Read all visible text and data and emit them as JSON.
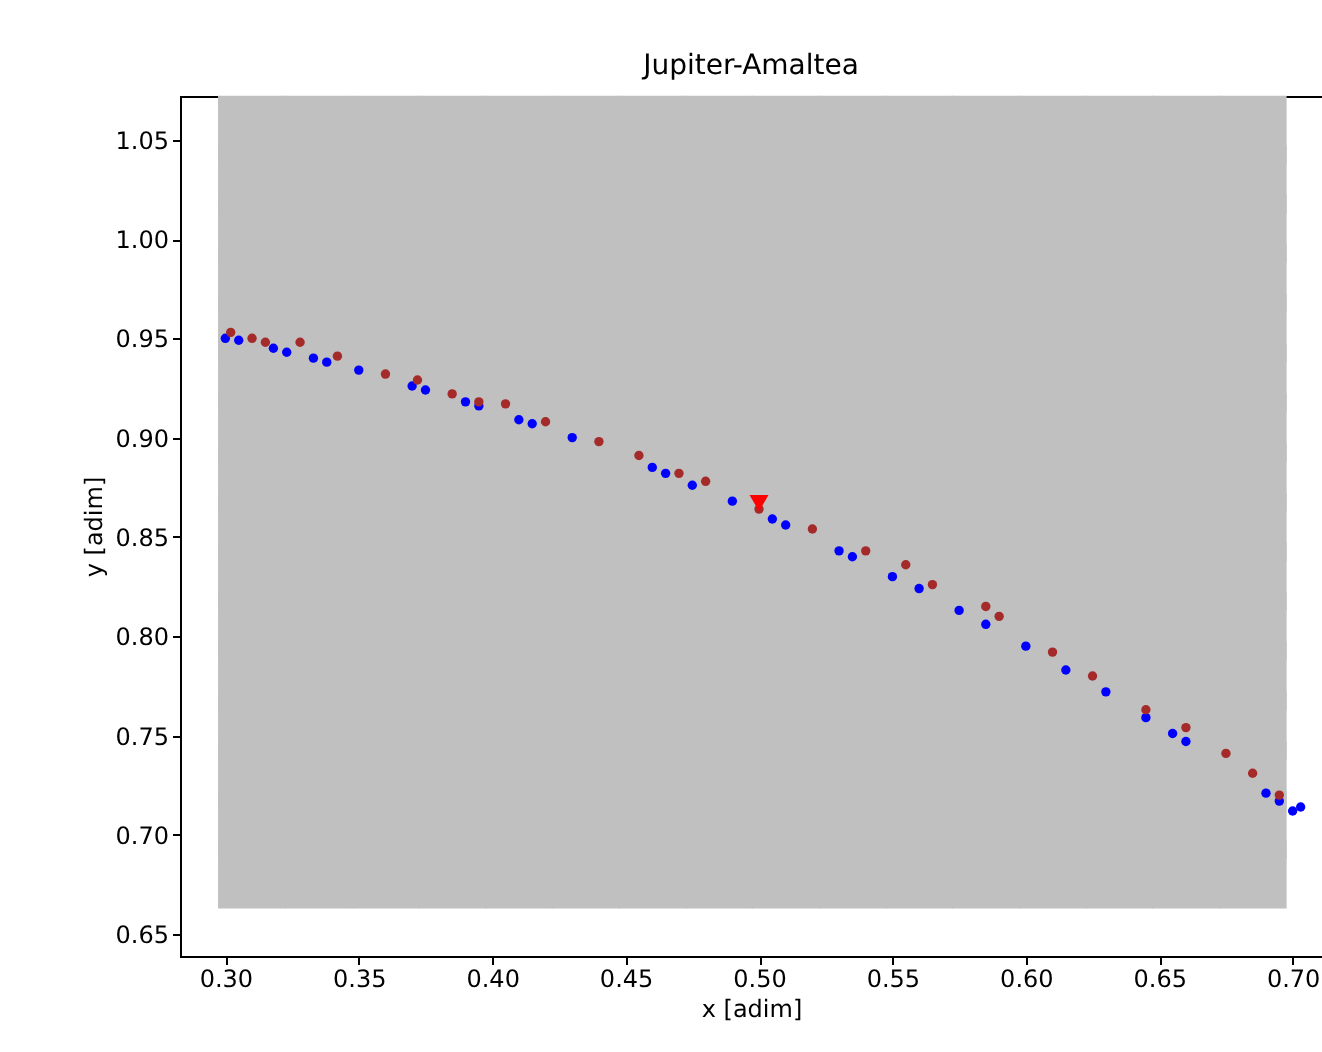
{
  "chart_data": {
    "type": "scatter",
    "title": "Jupiter-Amaltea",
    "xlabel": "x [adim]",
    "ylabel": "y [adim]",
    "xlim": [
      0.283,
      0.711
    ],
    "ylim": [
      0.639,
      1.072
    ],
    "xticks": [
      {
        "value": 0.3,
        "label": "0.30"
      },
      {
        "value": 0.35,
        "label": "0.35"
      },
      {
        "value": 0.4,
        "label": "0.40"
      },
      {
        "value": 0.45,
        "label": "0.45"
      },
      {
        "value": 0.5,
        "label": "0.50"
      },
      {
        "value": 0.55,
        "label": "0.55"
      },
      {
        "value": 0.6,
        "label": "0.60"
      },
      {
        "value": 0.65,
        "label": "0.65"
      },
      {
        "value": 0.7,
        "label": "0.70"
      }
    ],
    "yticks": [
      {
        "value": 0.65,
        "label": "0.65"
      },
      {
        "value": 0.7,
        "label": "0.70"
      },
      {
        "value": 0.75,
        "label": "0.75"
      },
      {
        "value": 0.8,
        "label": "0.80"
      },
      {
        "value": 0.85,
        "label": "0.85"
      },
      {
        "value": 0.9,
        "label": "0.90"
      },
      {
        "value": 0.95,
        "label": "0.95"
      },
      {
        "value": 1.0,
        "label": "1.00"
      },
      {
        "value": 1.05,
        "label": "1.05"
      }
    ],
    "series": [
      {
        "color": "#c0c0c0",
        "marker": "square",
        "x": [
          0.31,
          0.335,
          0.36,
          0.385,
          0.41,
          0.435,
          0.46,
          0.485,
          0.51,
          0.535,
          0.56,
          0.585,
          0.61,
          0.635,
          0.66,
          0.685,
          0.31,
          0.335,
          0.36,
          0.385,
          0.41,
          0.435,
          0.46,
          0.485,
          0.51,
          0.535,
          0.56,
          0.585,
          0.61,
          0.635,
          0.66,
          0.685,
          0.31,
          0.335,
          0.36,
          0.385,
          0.41,
          0.435,
          0.46,
          0.485,
          0.51,
          0.535,
          0.56,
          0.585,
          0.61,
          0.635,
          0.66,
          0.685,
          0.31,
          0.335,
          0.36,
          0.385,
          0.41,
          0.435,
          0.46,
          0.485,
          0.51,
          0.535,
          0.56,
          0.585,
          0.61,
          0.635,
          0.66,
          0.685,
          0.31,
          0.335,
          0.36,
          0.385,
          0.41,
          0.435,
          0.46,
          0.485,
          0.51,
          0.535,
          0.56,
          0.585,
          0.61,
          0.635,
          0.66,
          0.685,
          0.31,
          0.335,
          0.36,
          0.385,
          0.41,
          0.435,
          0.46,
          0.485,
          0.51,
          0.535,
          0.56,
          0.585,
          0.61,
          0.635,
          0.66,
          0.685,
          0.31,
          0.335,
          0.36,
          0.385,
          0.41,
          0.435,
          0.46,
          0.485,
          0.51,
          0.535,
          0.56,
          0.585,
          0.61,
          0.635,
          0.66,
          0.685,
          0.31,
          0.335,
          0.36,
          0.385,
          0.41,
          0.435,
          0.46,
          0.485,
          0.51,
          0.535,
          0.56,
          0.585,
          0.61,
          0.635,
          0.66,
          0.685,
          0.31,
          0.335,
          0.36,
          0.385,
          0.41,
          0.435,
          0.46,
          0.485,
          0.51,
          0.535,
          0.56,
          0.585,
          0.61,
          0.635,
          0.66,
          0.685,
          0.31,
          0.335,
          0.36,
          0.385,
          0.41,
          0.435,
          0.46,
          0.485,
          0.51,
          0.535,
          0.56,
          0.585,
          0.61,
          0.635,
          0.66,
          0.685,
          0.31,
          0.335,
          0.36,
          0.385,
          0.41,
          0.435,
          0.46,
          0.485,
          0.51,
          0.535,
          0.56,
          0.585,
          0.61,
          0.635,
          0.66,
          0.685,
          0.31,
          0.335,
          0.36,
          0.385,
          0.41,
          0.435,
          0.46,
          0.485,
          0.51,
          0.535,
          0.56,
          0.585,
          0.61,
          0.635,
          0.66,
          0.685,
          0.31,
          0.335,
          0.36,
          0.385,
          0.41,
          0.435,
          0.46,
          0.485,
          0.51,
          0.535,
          0.56,
          0.585,
          0.61,
          0.635,
          0.66,
          0.685,
          0.31,
          0.335,
          0.36,
          0.385,
          0.41,
          0.435,
          0.46,
          0.485,
          0.51,
          0.535,
          0.56,
          0.585,
          0.61,
          0.635,
          0.66,
          0.685,
          0.31,
          0.335,
          0.36,
          0.385,
          0.41,
          0.435,
          0.46,
          0.485,
          0.51,
          0.535,
          0.56,
          0.585,
          0.61,
          0.635,
          0.66,
          0.685,
          0.31,
          0.335,
          0.36,
          0.385,
          0.41,
          0.435,
          0.46,
          0.485,
          0.51,
          0.535,
          0.56,
          0.585,
          0.61,
          0.635,
          0.66,
          0.685
        ],
        "values": [
          0.68,
          0.68,
          0.68,
          0.68,
          0.68,
          0.68,
          0.68,
          0.68,
          0.68,
          0.68,
          0.68,
          0.68,
          0.68,
          0.68,
          0.68,
          0.68,
          0.705,
          0.705,
          0.705,
          0.705,
          0.705,
          0.705,
          0.705,
          0.705,
          0.705,
          0.705,
          0.705,
          0.705,
          0.705,
          0.705,
          0.705,
          0.705,
          0.73,
          0.73,
          0.73,
          0.73,
          0.73,
          0.73,
          0.73,
          0.73,
          0.73,
          0.73,
          0.73,
          0.73,
          0.73,
          0.73,
          0.73,
          0.73,
          0.755,
          0.755,
          0.755,
          0.755,
          0.755,
          0.755,
          0.755,
          0.755,
          0.755,
          0.755,
          0.755,
          0.755,
          0.755,
          0.755,
          0.755,
          0.755,
          0.78,
          0.78,
          0.78,
          0.78,
          0.78,
          0.78,
          0.78,
          0.78,
          0.78,
          0.78,
          0.78,
          0.78,
          0.78,
          0.78,
          0.78,
          0.78,
          0.805,
          0.805,
          0.805,
          0.805,
          0.805,
          0.805,
          0.805,
          0.805,
          0.805,
          0.805,
          0.805,
          0.805,
          0.805,
          0.805,
          0.805,
          0.805,
          0.83,
          0.83,
          0.83,
          0.83,
          0.83,
          0.83,
          0.83,
          0.83,
          0.83,
          0.83,
          0.83,
          0.83,
          0.83,
          0.83,
          0.83,
          0.83,
          0.855,
          0.855,
          0.855,
          0.855,
          0.855,
          0.855,
          0.855,
          0.855,
          0.855,
          0.855,
          0.855,
          0.855,
          0.855,
          0.855,
          0.855,
          0.855,
          0.88,
          0.88,
          0.88,
          0.88,
          0.88,
          0.88,
          0.88,
          0.88,
          0.88,
          0.88,
          0.88,
          0.88,
          0.88,
          0.88,
          0.88,
          0.88,
          0.905,
          0.905,
          0.905,
          0.905,
          0.905,
          0.905,
          0.905,
          0.905,
          0.905,
          0.905,
          0.905,
          0.905,
          0.905,
          0.905,
          0.905,
          0.905,
          0.93,
          0.93,
          0.93,
          0.93,
          0.93,
          0.93,
          0.93,
          0.93,
          0.93,
          0.93,
          0.93,
          0.93,
          0.93,
          0.93,
          0.93,
          0.93,
          0.955,
          0.955,
          0.955,
          0.955,
          0.955,
          0.955,
          0.955,
          0.955,
          0.955,
          0.955,
          0.955,
          0.955,
          0.955,
          0.955,
          0.955,
          0.955,
          0.98,
          0.98,
          0.98,
          0.98,
          0.98,
          0.98,
          0.98,
          0.98,
          0.98,
          0.98,
          0.98,
          0.98,
          0.98,
          0.98,
          0.98,
          0.98,
          1.005,
          1.005,
          1.005,
          1.005,
          1.005,
          1.005,
          1.005,
          1.005,
          1.005,
          1.005,
          1.005,
          1.005,
          1.005,
          1.005,
          1.005,
          1.005,
          1.03,
          1.03,
          1.03,
          1.03,
          1.03,
          1.03,
          1.03,
          1.03,
          1.03,
          1.03,
          1.03,
          1.03,
          1.03,
          1.03,
          1.03,
          1.03,
          1.055,
          1.055,
          1.055,
          1.055,
          1.055,
          1.055,
          1.055,
          1.055,
          1.055,
          1.055,
          1.055,
          1.055,
          1.055,
          1.055,
          1.055,
          1.055
        ]
      },
      {
        "color": "#0000ff",
        "marker": "circle",
        "x": [
          0.3,
          0.305,
          0.318,
          0.323,
          0.333,
          0.338,
          0.35,
          0.37,
          0.375,
          0.39,
          0.395,
          0.41,
          0.415,
          0.43,
          0.46,
          0.465,
          0.475,
          0.49,
          0.505,
          0.51,
          0.53,
          0.535,
          0.55,
          0.56,
          0.575,
          0.585,
          0.6,
          0.615,
          0.63,
          0.645,
          0.655,
          0.66,
          0.69,
          0.695,
          0.7,
          0.703
        ],
        "values": [
          0.95,
          0.949,
          0.945,
          0.943,
          0.94,
          0.938,
          0.934,
          0.926,
          0.924,
          0.918,
          0.916,
          0.909,
          0.907,
          0.9,
          0.885,
          0.882,
          0.876,
          0.868,
          0.859,
          0.856,
          0.843,
          0.84,
          0.83,
          0.824,
          0.813,
          0.806,
          0.795,
          0.783,
          0.772,
          0.759,
          0.751,
          0.747,
          0.721,
          0.717,
          0.712,
          0.714
        ]
      },
      {
        "color": "#a52a2a",
        "marker": "circle",
        "x": [
          0.302,
          0.31,
          0.315,
          0.328,
          0.342,
          0.36,
          0.372,
          0.385,
          0.395,
          0.405,
          0.42,
          0.44,
          0.455,
          0.47,
          0.48,
          0.5,
          0.52,
          0.54,
          0.555,
          0.565,
          0.585,
          0.59,
          0.61,
          0.625,
          0.645,
          0.66,
          0.675,
          0.685,
          0.695
        ],
        "values": [
          0.953,
          0.95,
          0.948,
          0.948,
          0.941,
          0.932,
          0.929,
          0.922,
          0.918,
          0.917,
          0.908,
          0.898,
          0.891,
          0.882,
          0.878,
          0.864,
          0.854,
          0.843,
          0.836,
          0.826,
          0.815,
          0.81,
          0.792,
          0.78,
          0.763,
          0.754,
          0.741,
          0.731,
          0.72
        ]
      },
      {
        "color": "#ff0000",
        "marker": "triangle",
        "x": [
          0.5
        ],
        "values": [
          0.867
        ]
      }
    ]
  }
}
